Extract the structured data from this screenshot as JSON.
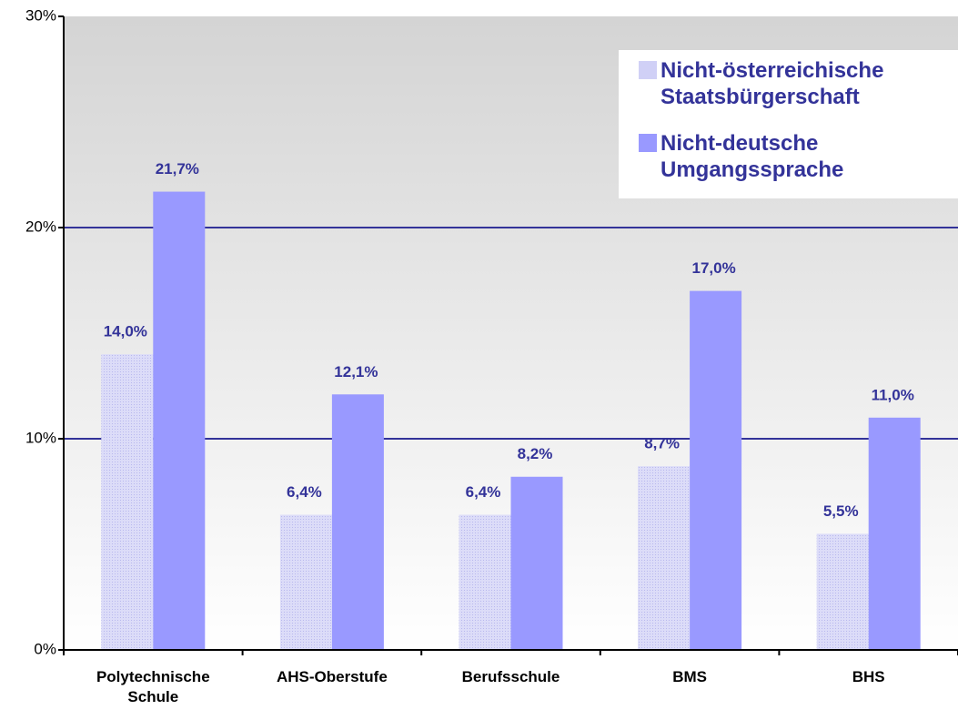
{
  "chart_data": {
    "type": "bar",
    "categories": [
      "Polytechnische Schule",
      "AHS-Oberstufe",
      "Berufsschule",
      "BMS",
      "BHS"
    ],
    "series": [
      {
        "name": "Nicht-österreichische Staatsbürgerschaft",
        "color": "#d0d0f6",
        "values": [
          14.0,
          6.4,
          6.4,
          8.7,
          5.5
        ],
        "value_labels": [
          "14,0%",
          "6,4%",
          "6,4%",
          "8,7%",
          "5,5%"
        ]
      },
      {
        "name": "Nicht-deutsche Umgangssprache",
        "color": "#9999ff",
        "values": [
          21.7,
          12.1,
          8.2,
          17.0,
          11.0
        ],
        "value_labels": [
          "21,7%",
          "12,1%",
          "8,2%",
          "17,0%",
          "11,0%"
        ]
      }
    ],
    "ylim": [
      0,
      30
    ],
    "yticks": [
      {
        "value": 0,
        "label": "0%"
      },
      {
        "value": 10,
        "label": "10%"
      },
      {
        "value": 20,
        "label": "20%"
      },
      {
        "value": 30,
        "label": "30%"
      }
    ],
    "grid": true,
    "legend": "upper right"
  }
}
